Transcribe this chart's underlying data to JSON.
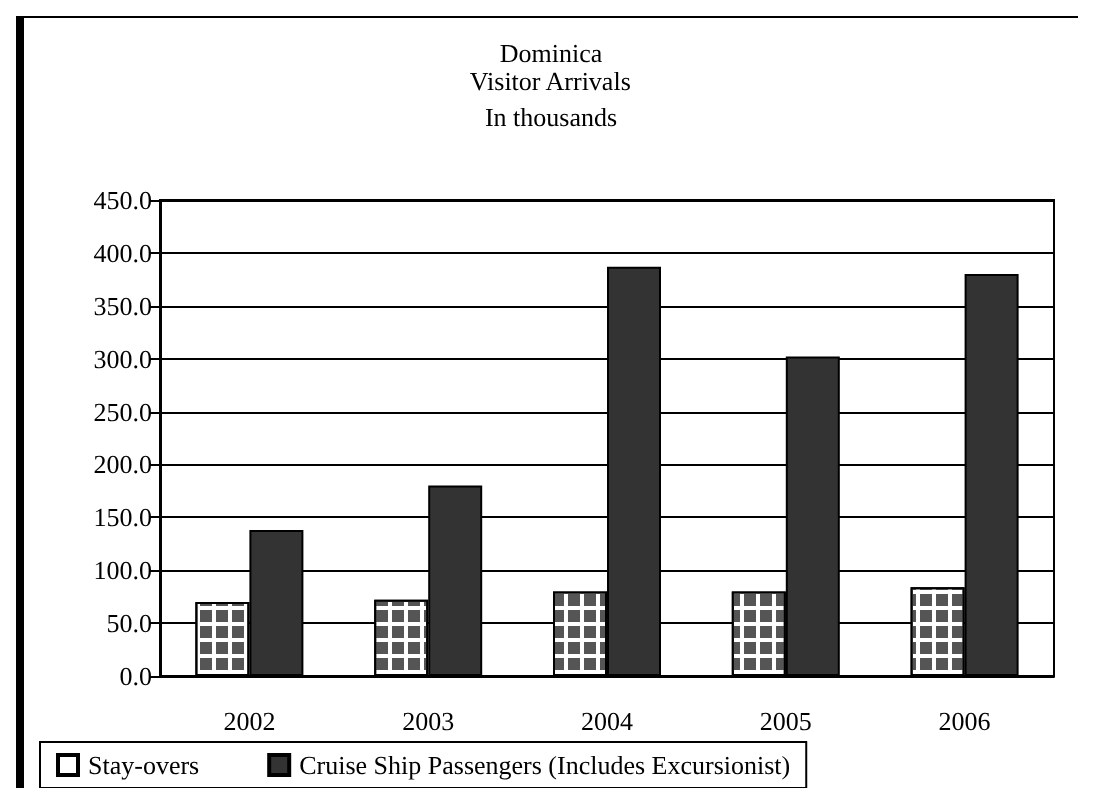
{
  "chart_data": {
    "type": "bar",
    "title": "Dominica",
    "subtitle": "Visitor Arrivals",
    "annotations": [
      "In thousands"
    ],
    "categories": [
      "2002",
      "2003",
      "2004",
      "2005",
      "2006"
    ],
    "series": [
      {
        "name": "Stay-overs",
        "color": "#ffffff",
        "values": [
          70,
          72,
          80,
          80,
          84
        ]
      },
      {
        "name": "Cruise Ship Passengers (Includes Excursionist)",
        "color": "#333333",
        "values": [
          138,
          180,
          387,
          302,
          380
        ]
      }
    ],
    "ylim": [
      0,
      450
    ],
    "yticks": [
      {
        "value": 0,
        "label": "0.0"
      },
      {
        "value": 50,
        "label": "50.0"
      },
      {
        "value": 100,
        "label": "100.0"
      },
      {
        "value": 150,
        "label": "150.0"
      },
      {
        "value": 200,
        "label": "200.0"
      },
      {
        "value": 250,
        "label": "250.0"
      },
      {
        "value": 300,
        "label": "300.0"
      },
      {
        "value": 350,
        "label": "350.0"
      },
      {
        "value": 400,
        "label": "400.0"
      },
      {
        "value": 450,
        "label": "450.0"
      }
    ],
    "grid": "y",
    "legend": "bottom"
  }
}
